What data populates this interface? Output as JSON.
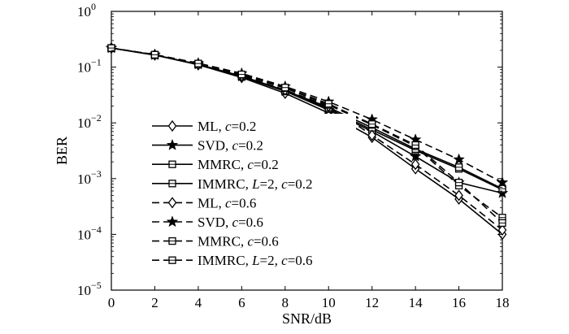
{
  "chart_data": {
    "type": "line",
    "title": "",
    "xlabel": "SNR/dB",
    "ylabel": "BER",
    "xlim": [
      0,
      18
    ],
    "ylim": [
      1e-05,
      1
    ],
    "yscale": "log",
    "grid": false,
    "legend_position": "center-left",
    "x": [
      0,
      2,
      4,
      6,
      8,
      10,
      12,
      14,
      16,
      18
    ],
    "x_ticks": [
      "0",
      "2",
      "4",
      "6",
      "8",
      "10",
      "12",
      "14",
      "16",
      "18"
    ],
    "y_ticks": [
      {
        "value": 1e-05,
        "base": "10",
        "exp": "−5"
      },
      {
        "value": 0.0001,
        "base": "10",
        "exp": "−4"
      },
      {
        "value": 0.001,
        "base": "10",
        "exp": "−3"
      },
      {
        "value": 0.01,
        "base": "10",
        "exp": "−2"
      },
      {
        "value": 0.1,
        "base": "10",
        "exp": "−1"
      },
      {
        "value": 1,
        "base": "10",
        "exp": "0"
      }
    ],
    "series": [
      {
        "name": "ML",
        "param": "c=0.2",
        "marker": "diamond",
        "dash": "solid",
        "values": [
          0.22,
          0.165,
          0.11,
          0.065,
          0.034,
          0.015,
          0.0055,
          0.0015,
          0.00043,
          0.0001
        ]
      },
      {
        "name": "SVD",
        "param": "c=0.2",
        "marker": "star",
        "dash": "solid",
        "values": [
          0.22,
          0.165,
          0.112,
          0.068,
          0.037,
          0.017,
          0.007,
          0.0025,
          0.00085,
          0.00055
        ]
      },
      {
        "name": "MMRC",
        "param": "c=0.2",
        "marker": "square",
        "dash": "solid",
        "values": [
          0.22,
          0.165,
          0.112,
          0.068,
          0.037,
          0.018,
          0.0075,
          0.0032,
          0.0015,
          0.00063
        ]
      },
      {
        "name": "IMMRC",
        "param": "L=2, c=0.2",
        "marker": "square",
        "dash": "solid",
        "values": [
          0.22,
          0.165,
          0.112,
          0.069,
          0.038,
          0.019,
          0.0082,
          0.0034,
          0.0016,
          0.00066
        ]
      },
      {
        "name": "ML",
        "param": "c=0.6",
        "marker": "diamond",
        "dash": "dashed",
        "values": [
          0.22,
          0.166,
          0.113,
          0.07,
          0.039,
          0.02,
          0.006,
          0.0018,
          0.0005,
          0.00012
        ]
      },
      {
        "name": "SVD",
        "param": "c=0.6",
        "marker": "star",
        "dash": "dashed",
        "values": [
          0.22,
          0.168,
          0.118,
          0.077,
          0.045,
          0.024,
          0.0115,
          0.005,
          0.0022,
          0.00085
        ]
      },
      {
        "name": "MMRC",
        "param": "c=0.6",
        "marker": "square",
        "dash": "dashed",
        "values": [
          0.22,
          0.167,
          0.115,
          0.073,
          0.042,
          0.021,
          0.0092,
          0.0038,
          0.00075,
          0.0002
        ]
      },
      {
        "name": "IMMRC",
        "param": "L=2, c=0.6",
        "marker": "square",
        "dash": "dashed",
        "values": [
          0.22,
          0.167,
          0.116,
          0.074,
          0.043,
          0.022,
          0.0095,
          0.004,
          0.00085,
          0.00016
        ]
      }
    ],
    "legend": [
      {
        "name": "ML",
        "sep": ", ",
        "symbol": "c",
        "value": "=0.2"
      },
      {
        "name": "SVD",
        "sep": ", ",
        "symbol": "c",
        "value": "=0.2"
      },
      {
        "name": "MMRC",
        "sep": ", ",
        "symbol": "c",
        "value": "=0.2"
      },
      {
        "name": "IMMRC",
        "sep": ", ",
        "symbol": "L",
        "mid": "=2, ",
        "symbol2": "c",
        "value": "=0.2"
      },
      {
        "name": "ML",
        "sep": ", ",
        "symbol": "c",
        "value": "=0.6"
      },
      {
        "name": "SVD",
        "sep": ", ",
        "symbol": "c",
        "value": "=0.6"
      },
      {
        "name": "MMRC",
        "sep": ", ",
        "symbol": "c",
        "value": "=0.6"
      },
      {
        "name": "IMMRC",
        "sep": ", ",
        "symbol": "L",
        "mid": "=2, ",
        "symbol2": "c",
        "value": "=0.6"
      }
    ]
  }
}
